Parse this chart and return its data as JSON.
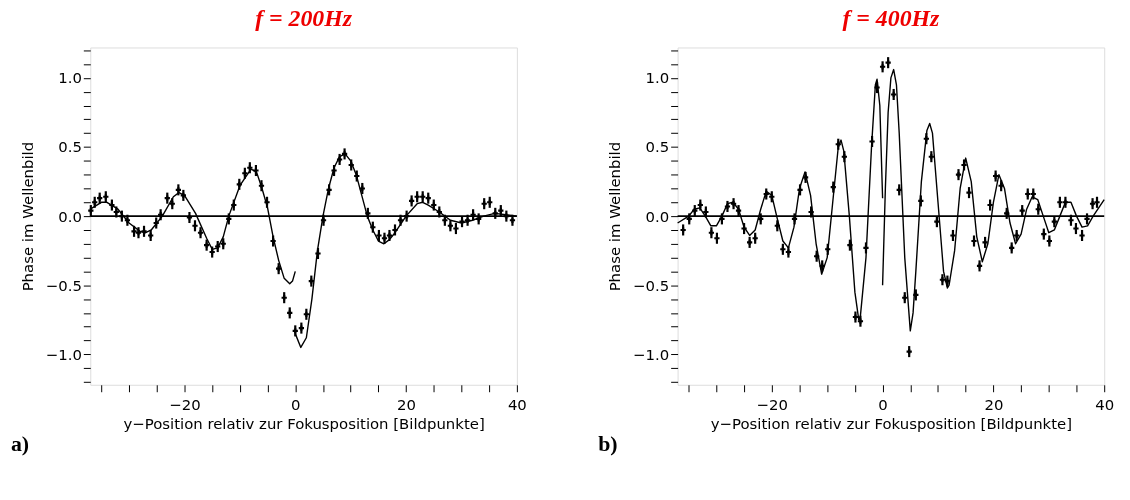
{
  "chart_data": [
    {
      "type": "scatter",
      "title": "f = 200Hz",
      "xlabel": "y−Position relativ zur Fokusposition [Bildpunkte]",
      "ylabel": "Phase im Wellenbild",
      "xlim": [
        -37,
        40
      ],
      "ylim": [
        -1.22,
        1.22
      ],
      "xticks": [
        {
          "value": -35,
          "label": null
        },
        {
          "value": -30,
          "label": null
        },
        {
          "value": -25,
          "label": null
        },
        {
          "value": -20,
          "label": "−20"
        },
        {
          "value": -15,
          "label": null
        },
        {
          "value": -10,
          "label": null
        },
        {
          "value": -5,
          "label": null
        },
        0,
        {
          "value": 5,
          "label": null
        },
        {
          "value": 10,
          "label": null
        },
        {
          "value": 15,
          "label": null
        },
        20,
        {
          "value": 25,
          "label": null
        },
        {
          "value": 30,
          "label": null
        },
        {
          "value": 35,
          "label": null
        },
        40
      ],
      "yticks": [
        {
          "value": -1.2,
          "label": null
        },
        {
          "value": -1.1,
          "label": null
        },
        {
          "value": -1.0,
          "label": "−1.0"
        },
        {
          "value": -0.9,
          "label": null
        },
        {
          "value": -0.8,
          "label": null
        },
        {
          "value": -0.7,
          "label": null
        },
        {
          "value": -0.6,
          "label": null
        },
        {
          "value": -0.5,
          "label": "−0.5"
        },
        {
          "value": -0.4,
          "label": null
        },
        {
          "value": -0.3,
          "label": null
        },
        {
          "value": -0.2,
          "label": null
        },
        {
          "value": -0.1,
          "label": null
        },
        {
          "value": 0,
          "label": "0.0"
        },
        {
          "value": 0.1,
          "label": null
        },
        {
          "value": 0.2,
          "label": null
        },
        {
          "value": 0.3,
          "label": null
        },
        {
          "value": 0.4,
          "label": null
        },
        {
          "value": 0.5,
          "label": "0.5"
        },
        {
          "value": 0.6,
          "label": null
        },
        {
          "value": 0.7,
          "label": null
        },
        {
          "value": 0.8,
          "label": null
        },
        {
          "value": 0.9,
          "label": null
        },
        {
          "value": 1.0,
          "label": "1.0"
        },
        {
          "value": 1.1,
          "label": null
        },
        {
          "value": 1.2,
          "label": null
        }
      ],
      "ref_lines": [
        {
          "axis": "y",
          "value": 0
        }
      ],
      "annotations": [
        "a)"
      ],
      "grid": false,
      "series": [
        {
          "type": "scatter",
          "marker": "cross",
          "color": "#000000",
          "x": [
            -36.9,
            -36.2,
            -35.3,
            -34.2,
            -33.1,
            -32.3,
            -31.3,
            -30.3,
            -29.1,
            -28.3,
            -27.3,
            -26.1,
            -25.1,
            -24.3,
            -23.1,
            -22.2,
            -21.1,
            -20.2,
            -19.1,
            -18.1,
            -17.1,
            -16,
            -15,
            -14,
            -13,
            -12,
            -11.1,
            -10.1,
            -9.1,
            -8.2,
            -7.1,
            -6.1,
            -5.1,
            -4,
            -3,
            -2,
            -1,
            0,
            1.1,
            2,
            2.9,
            4.1,
            5.1,
            6.1,
            7,
            8,
            8.9,
            10.1,
            11.1,
            12.1,
            13.1,
            14,
            15.1,
            16.1,
            17,
            18,
            19,
            20.1,
            21,
            22,
            23,
            24,
            25,
            26,
            27,
            28,
            29,
            30.1,
            31.1,
            32.1,
            33.1,
            34.1,
            35.1,
            36.1,
            37.1,
            38.1,
            39.2
          ],
          "values": [
            0.04,
            0.1,
            0.13,
            0.14,
            0.08,
            0.03,
            0.0,
            -0.03,
            -0.11,
            -0.12,
            -0.11,
            -0.14,
            -0.05,
            0.01,
            0.13,
            0.09,
            0.19,
            0.15,
            -0.01,
            -0.07,
            -0.12,
            -0.21,
            -0.26,
            -0.22,
            -0.2,
            -0.02,
            0.08,
            0.23,
            0.31,
            0.35,
            0.33,
            0.22,
            0.1,
            -0.18,
            -0.38,
            -0.59,
            -0.7,
            -0.83,
            -0.81,
            -0.71,
            -0.47,
            -0.27,
            -0.03,
            0.19,
            0.33,
            0.41,
            0.45,
            0.37,
            0.29,
            0.2,
            0.02,
            -0.08,
            -0.14,
            -0.16,
            -0.14,
            -0.1,
            -0.03,
            0.0,
            0.11,
            0.14,
            0.14,
            0.13,
            0.08,
            0.03,
            -0.03,
            -0.07,
            -0.09,
            -0.04,
            -0.03,
            0.01,
            -0.02,
            0.09,
            0.1,
            0.02,
            0.04,
            0.0,
            -0.03
          ],
          "errors": [
            0.04,
            0.04,
            0.04,
            0.04,
            0.04,
            0.04,
            0.04,
            0.04,
            0.04,
            0.04,
            0.04,
            0.04,
            0.04,
            0.04,
            0.04,
            0.04,
            0.04,
            0.04,
            0.04,
            0.04,
            0.04,
            0.04,
            0.04,
            0.04,
            0.04,
            0.04,
            0.04,
            0.04,
            0.04,
            0.04,
            0.04,
            0.04,
            0.04,
            0.04,
            0.04,
            0.04,
            0.04,
            0.04,
            0.04,
            0.04,
            0.04,
            0.04,
            0.04,
            0.04,
            0.04,
            0.04,
            0.04,
            0.04,
            0.04,
            0.04,
            0.04,
            0.04,
            0.04,
            0.04,
            0.04,
            0.04,
            0.04,
            0.04,
            0.04,
            0.04,
            0.04,
            0.04,
            0.04,
            0.04,
            0.04,
            0.04,
            0.04,
            0.04,
            0.04,
            0.04,
            0.04,
            0.04,
            0.04,
            0.04,
            0.04,
            0.04,
            0.04
          ]
        },
        {
          "type": "line",
          "color": "#000000",
          "x": [
            -37,
            -35,
            -34,
            -32,
            -30,
            -28,
            -27,
            -26,
            -24,
            -22,
            -21,
            -20,
            -18,
            -16,
            -15,
            -14,
            -13,
            -12,
            -10,
            -8,
            -7,
            -6,
            -5,
            -4,
            -3,
            -2,
            -1,
            -0.5,
            0
          ],
          "values": [
            0.05,
            0.1,
            0.1,
            0.05,
            -0.05,
            -0.11,
            -0.12,
            -0.1,
            0.0,
            0.14,
            0.17,
            0.15,
            0.02,
            -0.16,
            -0.24,
            -0.23,
            -0.15,
            0.0,
            0.22,
            0.34,
            0.32,
            0.2,
            0.06,
            -0.15,
            -0.32,
            -0.45,
            -0.49,
            -0.47,
            -0.4
          ]
        },
        {
          "type": "line",
          "color": "#000000",
          "x": [
            0,
            1,
            2,
            3,
            4,
            5,
            6,
            7,
            8,
            9,
            10,
            11,
            12,
            13,
            14,
            15,
            16,
            17,
            18,
            20,
            22,
            23,
            24,
            26,
            28,
            30,
            32,
            34,
            36,
            38,
            40
          ],
          "values": [
            -0.85,
            -0.95,
            -0.88,
            -0.6,
            -0.25,
            0.0,
            0.2,
            0.35,
            0.43,
            0.45,
            0.4,
            0.3,
            0.15,
            0.0,
            -0.1,
            -0.18,
            -0.2,
            -0.17,
            -0.12,
            0.0,
            0.09,
            0.1,
            0.08,
            0.03,
            -0.03,
            -0.05,
            -0.03,
            0.0,
            0.02,
            0.01,
            0.0
          ]
        }
      ]
    },
    {
      "type": "scatter",
      "title": "f = 400Hz",
      "xlabel": "y−Position relativ zur Fokusposition [Bildpunkte]",
      "ylabel": "Phase im Wellenbild",
      "xlim": [
        -37,
        40
      ],
      "ylim": [
        -1.22,
        1.22
      ],
      "xticks": [
        {
          "value": -35,
          "label": null
        },
        {
          "value": -30,
          "label": null
        },
        {
          "value": -25,
          "label": null
        },
        {
          "value": -20,
          "label": "−20"
        },
        {
          "value": -15,
          "label": null
        },
        {
          "value": -10,
          "label": null
        },
        {
          "value": -5,
          "label": null
        },
        0,
        {
          "value": 5,
          "label": null
        },
        {
          "value": 10,
          "label": null
        },
        {
          "value": 15,
          "label": null
        },
        20,
        {
          "value": 25,
          "label": null
        },
        {
          "value": 30,
          "label": null
        },
        {
          "value": 35,
          "label": null
        },
        40
      ],
      "yticks": [
        {
          "value": -1.2,
          "label": null
        },
        {
          "value": -1.1,
          "label": null
        },
        {
          "value": -1.0,
          "label": "−1.0"
        },
        {
          "value": -0.9,
          "label": null
        },
        {
          "value": -0.8,
          "label": null
        },
        {
          "value": -0.7,
          "label": null
        },
        {
          "value": -0.6,
          "label": null
        },
        {
          "value": -0.5,
          "label": "−0.5"
        },
        {
          "value": -0.4,
          "label": null
        },
        {
          "value": -0.3,
          "label": null
        },
        {
          "value": -0.2,
          "label": null
        },
        {
          "value": -0.1,
          "label": null
        },
        {
          "value": 0,
          "label": "0.0"
        },
        {
          "value": 0.1,
          "label": null
        },
        {
          "value": 0.2,
          "label": null
        },
        {
          "value": 0.3,
          "label": null
        },
        {
          "value": 0.4,
          "label": null
        },
        {
          "value": 0.5,
          "label": "0.5"
        },
        {
          "value": 0.6,
          "label": null
        },
        {
          "value": 0.7,
          "label": null
        },
        {
          "value": 0.8,
          "label": null
        },
        {
          "value": 0.9,
          "label": null
        },
        {
          "value": 1.0,
          "label": "1.0"
        },
        {
          "value": 1.1,
          "label": null
        },
        {
          "value": 1.2,
          "label": null
        }
      ],
      "ref_lines": [
        {
          "axis": "y",
          "value": 0
        }
      ],
      "annotations": [
        "b)"
      ],
      "grid": false,
      "series": [
        {
          "type": "scatter",
          "marker": "cross",
          "color": "#000000",
          "x": [
            -36,
            -34.9,
            -33.9,
            -32.9,
            -31.9,
            -30.9,
            -29.9,
            -29,
            -28,
            -26.9,
            -26,
            -25,
            -24,
            -23,
            -22,
            -21,
            -20,
            -19,
            -18,
            -17,
            -15.9,
            -14.9,
            -13.9,
            -12.9,
            -11.9,
            -10.9,
            -9.9,
            -8.9,
            -8,
            -6.9,
            -5.9,
            -4.9,
            -4,
            -3,
            -1.9,
            -1,
            0,
            1,
            2,
            3,
            4,
            4.8,
            6,
            6.9,
            7.9,
            8.8,
            9.8,
            10.8,
            11.7,
            12.7,
            13.7,
            14.7,
            15.6,
            16.5,
            17.5,
            18.5,
            19.4,
            20.4,
            21.4,
            22.4,
            23.3,
            24.2,
            25.2,
            26.2,
            27.2,
            28.1,
            29.1,
            30.1,
            31,
            32,
            33,
            34,
            34.9,
            36,
            36.9,
            37.9,
            38.7
          ],
          "values": [
            -0.1,
            -0.02,
            0.04,
            0.08,
            0.03,
            -0.12,
            -0.16,
            -0.02,
            0.07,
            0.09,
            0.04,
            -0.09,
            -0.19,
            -0.16,
            -0.02,
            0.16,
            0.14,
            -0.07,
            -0.24,
            -0.26,
            -0.02,
            0.19,
            0.28,
            0.03,
            -0.29,
            -0.36,
            -0.24,
            0.21,
            0.52,
            0.43,
            -0.21,
            -0.73,
            -0.76,
            -0.23,
            0.54,
            0.93,
            1.08,
            1.11,
            0.88,
            0.19,
            -0.59,
            -0.98,
            -0.57,
            0.11,
            0.56,
            0.43,
            -0.04,
            -0.46,
            -0.47,
            -0.14,
            0.3,
            0.37,
            0.17,
            -0.18,
            -0.36,
            -0.19,
            0.08,
            0.29,
            0.22,
            0.02,
            -0.23,
            -0.14,
            0.04,
            0.16,
            0.16,
            0.05,
            -0.13,
            -0.18,
            -0.04,
            0.1,
            0.1,
            -0.03,
            -0.09,
            -0.14,
            -0.02,
            0.09,
            0.1
          ],
          "errors": [
            0.04,
            0.04,
            0.04,
            0.04,
            0.04,
            0.04,
            0.04,
            0.04,
            0.04,
            0.04,
            0.04,
            0.04,
            0.04,
            0.04,
            0.04,
            0.04,
            0.04,
            0.04,
            0.04,
            0.04,
            0.04,
            0.04,
            0.04,
            0.04,
            0.04,
            0.04,
            0.04,
            0.04,
            0.04,
            0.04,
            0.04,
            0.04,
            0.04,
            0.04,
            0.04,
            0.04,
            0.04,
            0.04,
            0.04,
            0.04,
            0.04,
            0.04,
            0.04,
            0.04,
            0.04,
            0.04,
            0.04,
            0.04,
            0.04,
            0.04,
            0.04,
            0.04,
            0.04,
            0.04,
            0.04,
            0.04,
            0.04,
            0.04,
            0.04,
            0.04,
            0.04,
            0.04,
            0.04,
            0.04,
            0.04,
            0.04,
            0.04,
            0.04,
            0.04,
            0.04,
            0.04,
            0.04,
            0.04,
            0.04,
            0.04,
            0.04,
            0.04
          ]
        },
        {
          "type": "line",
          "color": "#000000",
          "x": [
            -37,
            -35,
            -34,
            -33,
            -32,
            -31,
            -30,
            -29,
            -28,
            -27,
            -26,
            -25,
            -24,
            -23,
            -22,
            -21,
            -20,
            -19,
            -18,
            -17,
            -16,
            -15,
            -14,
            -13,
            -12,
            -11,
            -10,
            -9,
            -8,
            -7.5,
            -7,
            -6,
            -5,
            -4.3,
            -4,
            -3,
            -2,
            -1.3,
            -1,
            -0.5,
            0
          ],
          "values": [
            -0.05,
            0.0,
            0.05,
            0.06,
            0.0,
            -0.07,
            -0.07,
            0.0,
            0.09,
            0.1,
            0.05,
            -0.08,
            -0.14,
            -0.1,
            0.05,
            0.18,
            0.15,
            -0.02,
            -0.18,
            -0.23,
            -0.08,
            0.2,
            0.32,
            0.15,
            -0.2,
            -0.42,
            -0.3,
            0.1,
            0.5,
            0.55,
            0.47,
            0.0,
            -0.55,
            -0.75,
            -0.72,
            -0.3,
            0.5,
            0.95,
            0.99,
            0.8,
            0.13
          ]
        },
        {
          "type": "line",
          "color": "#000000",
          "x": [
            0,
            0.5,
            1,
            1.5,
            2,
            2.5,
            3,
            4,
            5,
            5.5,
            6,
            7,
            8,
            8.5,
            9,
            10,
            11,
            11.7,
            12,
            13,
            14,
            15,
            16,
            17,
            18,
            19,
            20,
            21,
            22,
            23,
            24,
            25,
            26,
            27,
            28,
            29,
            30,
            31,
            32,
            33,
            34,
            35,
            36,
            37,
            38,
            39,
            40
          ],
          "values": [
            -0.5,
            0.2,
            0.75,
            1.0,
            1.06,
            0.95,
            0.6,
            -0.3,
            -0.83,
            -0.7,
            -0.4,
            0.25,
            0.62,
            0.67,
            0.6,
            0.1,
            -0.4,
            -0.52,
            -0.5,
            -0.25,
            0.2,
            0.42,
            0.25,
            -0.15,
            -0.33,
            -0.2,
            0.1,
            0.3,
            0.2,
            -0.05,
            -0.2,
            -0.13,
            0.05,
            0.14,
            0.12,
            0.0,
            -0.12,
            -0.1,
            0.0,
            0.1,
            0.1,
            0.0,
            -0.08,
            -0.07,
            0.0,
            0.06,
            0.12
          ]
        }
      ]
    }
  ]
}
